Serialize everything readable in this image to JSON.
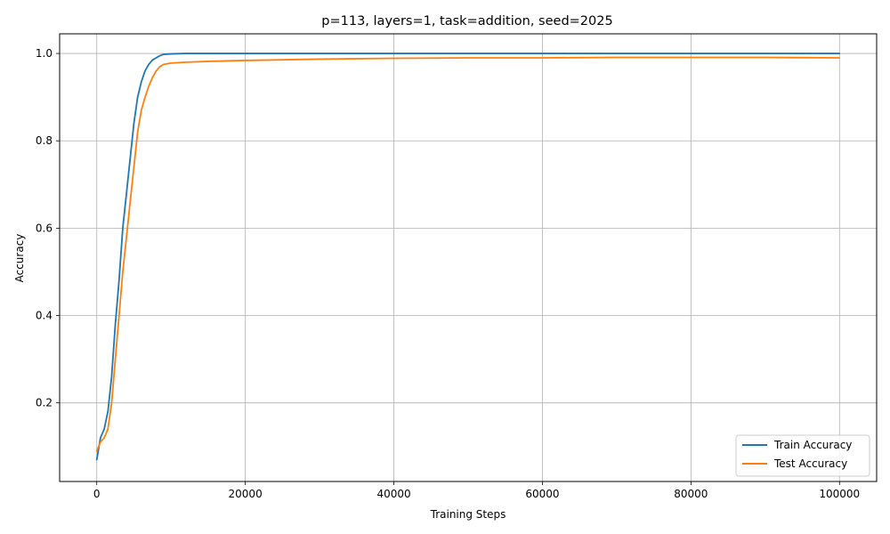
{
  "chart_data": {
    "type": "line",
    "title": "p=113, layers=1, task=addition, seed=2025",
    "xlabel": "Training Steps",
    "ylabel": "Accuracy",
    "xlim": [
      -5000,
      105000
    ],
    "ylim": [
      0.02,
      1.045
    ],
    "xticks": [
      0,
      20000,
      40000,
      60000,
      80000,
      100000
    ],
    "xtick_labels": [
      "0",
      "20000",
      "40000",
      "60000",
      "80000",
      "100000"
    ],
    "yticks": [
      0.2,
      0.4,
      0.6,
      0.8,
      1.0
    ],
    "ytick_labels": [
      "0.2",
      "0.4",
      "0.6",
      "0.8",
      "1.0"
    ],
    "grid": true,
    "legend": "lower-right",
    "series": [
      {
        "name": "Train Accuracy",
        "color": "#1f77b4",
        "x": [
          0,
          500,
          1000,
          1500,
          2000,
          2500,
          3000,
          3500,
          4000,
          4500,
          5000,
          5500,
          6000,
          6500,
          7000,
          7500,
          8000,
          8500,
          9000,
          10000,
          12000,
          15000,
          20000,
          30000,
          40000,
          50000,
          60000,
          70000,
          80000,
          90000,
          100000
        ],
        "y": [
          0.07,
          0.12,
          0.14,
          0.18,
          0.26,
          0.38,
          0.48,
          0.6,
          0.68,
          0.76,
          0.84,
          0.9,
          0.935,
          0.96,
          0.975,
          0.985,
          0.99,
          0.995,
          0.998,
          0.999,
          1.0,
          1.0,
          1.0,
          1.0,
          1.0,
          1.0,
          1.0,
          1.0,
          1.0,
          1.0,
          1.0
        ]
      },
      {
        "name": "Test Accuracy",
        "color": "#ff7f0e",
        "x": [
          0,
          500,
          1000,
          1500,
          2000,
          2500,
          3000,
          3500,
          4000,
          4500,
          5000,
          5500,
          6000,
          6500,
          7000,
          7500,
          8000,
          8500,
          9000,
          10000,
          12000,
          15000,
          20000,
          30000,
          40000,
          50000,
          60000,
          70000,
          80000,
          90000,
          100000
        ],
        "y": [
          0.09,
          0.11,
          0.12,
          0.14,
          0.2,
          0.3,
          0.4,
          0.5,
          0.58,
          0.66,
          0.74,
          0.82,
          0.87,
          0.9,
          0.925,
          0.945,
          0.96,
          0.97,
          0.975,
          0.978,
          0.98,
          0.982,
          0.984,
          0.987,
          0.989,
          0.99,
          0.99,
          0.991,
          0.991,
          0.991,
          0.99
        ]
      }
    ]
  }
}
